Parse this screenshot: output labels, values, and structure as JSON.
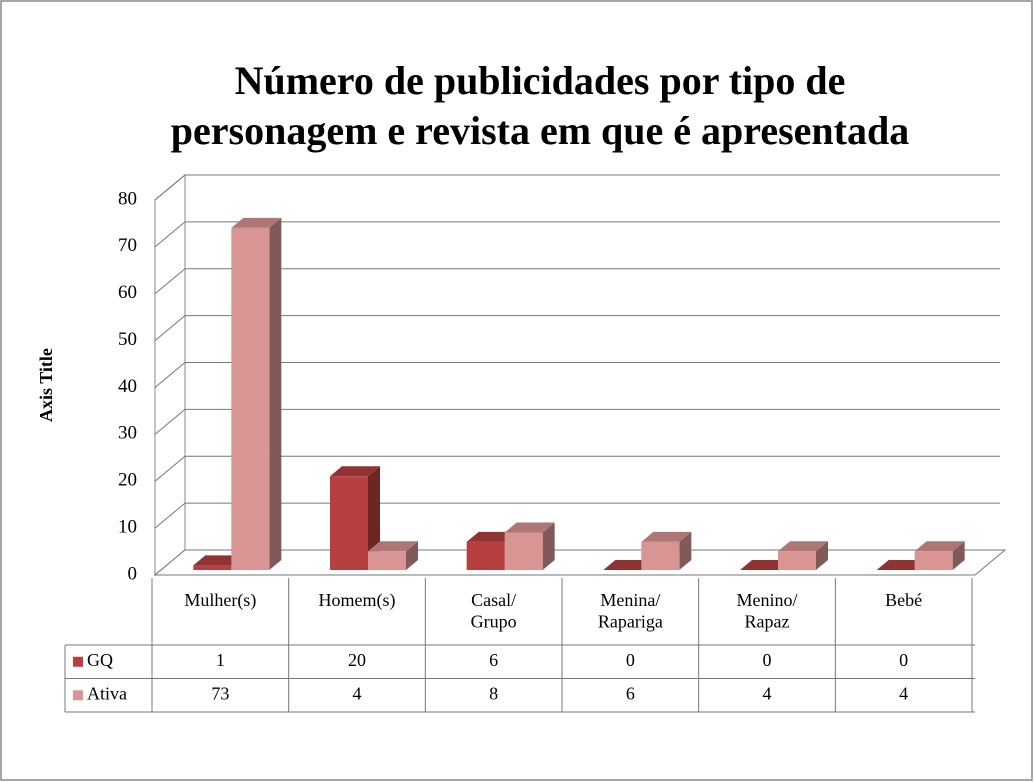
{
  "chart_data": {
    "type": "bar3d",
    "title": [
      "Número de publicidades por tipo de",
      "personagem e revista em que é apresentada"
    ],
    "y_axis_title": "Axis Title",
    "categories": [
      "Mulher(s)",
      "Homem(s)",
      "Casal/\nGrupo",
      "Menina/\nRapariga",
      "Menino/\nRapaz",
      "Bebé"
    ],
    "series": [
      {
        "name": "GQ",
        "color": "#b5403f",
        "values": [
          1,
          20,
          6,
          0,
          0,
          0
        ]
      },
      {
        "name": "Ativa",
        "color": "#d99594",
        "values": [
          73,
          4,
          8,
          6,
          4,
          4
        ]
      }
    ],
    "ylim": [
      0,
      80
    ],
    "yticks": [
      0,
      10,
      20,
      30,
      40,
      50,
      60,
      70,
      80
    ],
    "grid": true
  }
}
